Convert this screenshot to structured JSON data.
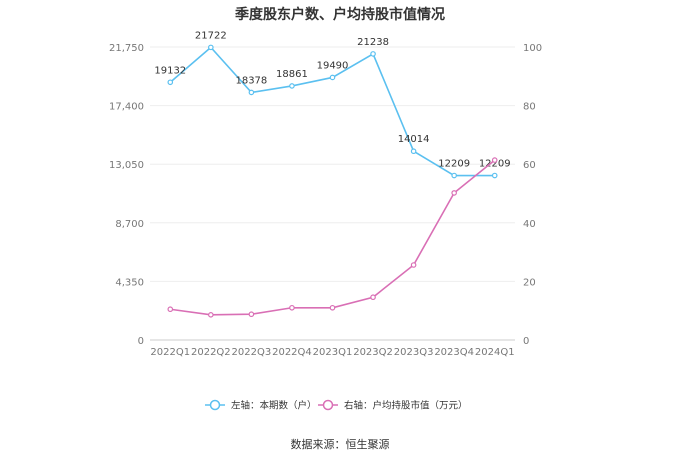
{
  "chart_data": {
    "type": "line",
    "title": "季度股东户数、户均持股市值情况",
    "categories": [
      "2022Q1",
      "2022Q2",
      "2022Q3",
      "2022Q4",
      "2023Q1",
      "2023Q2",
      "2023Q3",
      "2023Q4",
      "2024Q1"
    ],
    "left_axis": {
      "ticks": [
        "0",
        "4,350",
        "8,700",
        "13,050",
        "17,400",
        "21,750"
      ],
      "ylim": [
        0,
        21750
      ]
    },
    "right_axis": {
      "ticks": [
        "0",
        "20",
        "40",
        "60",
        "80",
        "100"
      ],
      "ylim": [
        0,
        100
      ]
    },
    "series": [
      {
        "name": "左轴：本期数（户）",
        "axis": "left",
        "color": "#5bc0f0",
        "values": [
          19132,
          21722,
          18378,
          18861,
          19490,
          21238,
          14014,
          12209,
          12209
        ],
        "labels": [
          "19132",
          "21722",
          "18378",
          "18861",
          "19490",
          "21238",
          "14014",
          "12209",
          "12209"
        ]
      },
      {
        "name": "右轴：户均持股市值（万元）",
        "axis": "right",
        "color": "#d96fb5",
        "values": [
          10.5,
          8.6,
          8.8,
          11.0,
          11.0,
          14.6,
          25.6,
          50.2,
          61.4
        ]
      }
    ],
    "legend_position": "bottom",
    "grid": true
  },
  "source": "数据来源：恒生聚源"
}
